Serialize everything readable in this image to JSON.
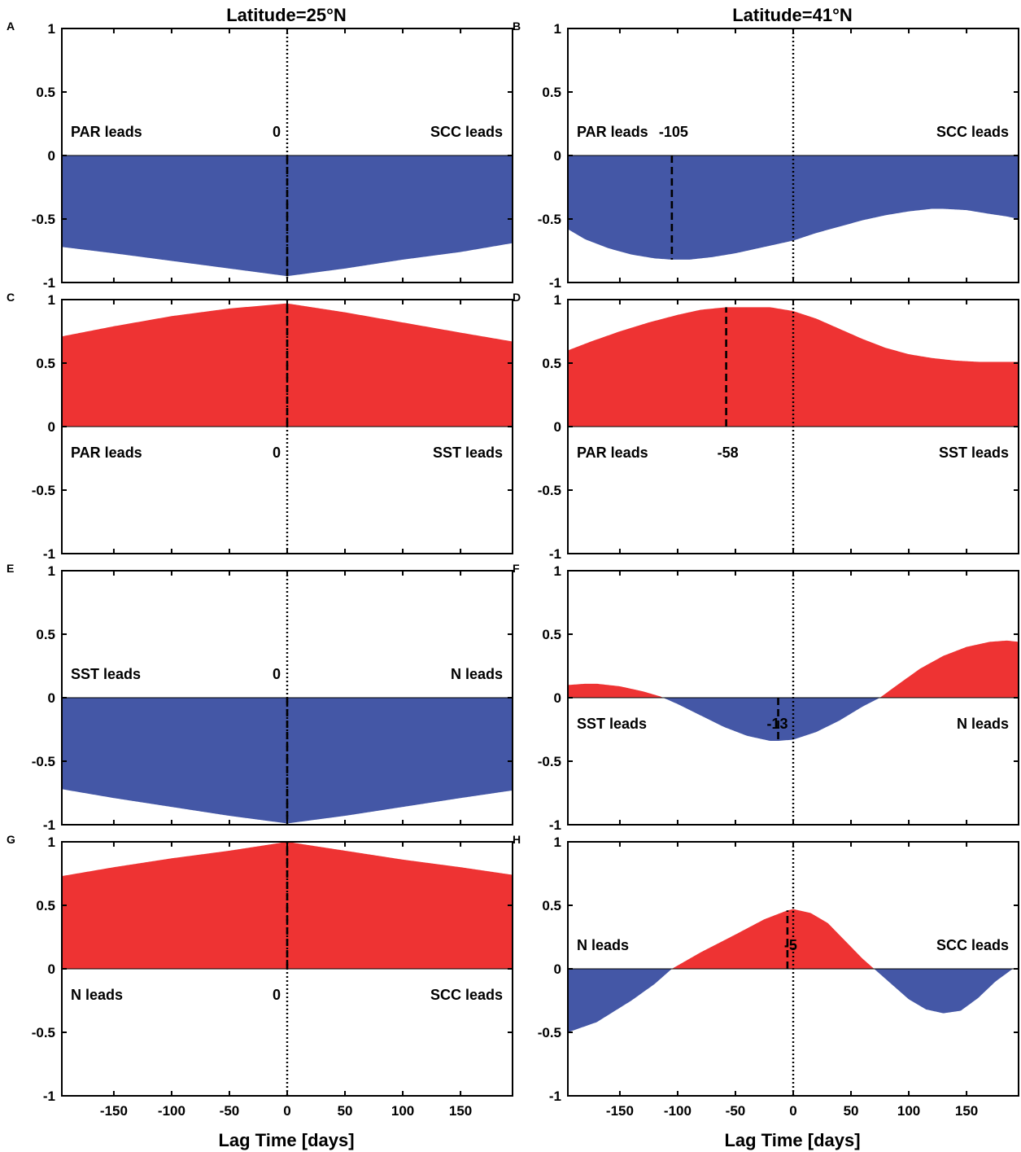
{
  "figure": {
    "column_titles": [
      "Latitude=25°N",
      "Latitude=41°N"
    ],
    "xlabel": "Lag Time [days]",
    "xlim": [
      -195,
      195
    ],
    "ylim": [
      -1,
      1
    ],
    "xticks": [
      -150,
      -100,
      -50,
      0,
      50,
      100,
      150
    ],
    "xtick_labels": [
      "-150",
      "-100",
      "-50",
      "0",
      "50",
      "100",
      "150"
    ],
    "yticks": [
      1,
      0.5,
      0,
      -0.5,
      -1
    ],
    "ytick_labels": [
      "1",
      "0.5",
      "0",
      "-0.5",
      "-1"
    ],
    "colors": {
      "positive": "#ee3333",
      "negative": "#4457a6",
      "axis": "#000000"
    }
  },
  "chart_data": [
    {
      "panel": "A",
      "type": "area",
      "column": 0,
      "row": 0,
      "title": "Latitude=25°N",
      "xlabel": "",
      "ylabel": "",
      "x": [
        -195,
        -150,
        -100,
        -50,
        0,
        50,
        100,
        150,
        195
      ],
      "y": [
        -0.72,
        -0.77,
        -0.83,
        -0.89,
        -0.95,
        -0.89,
        -0.82,
        -0.76,
        -0.69
      ],
      "peak_lag": 0,
      "peak_label": "0",
      "left_label": "PAR leads",
      "right_label": "SCC leads",
      "label_side": "above"
    },
    {
      "panel": "B",
      "type": "area",
      "column": 1,
      "row": 0,
      "title": "Latitude=41°N",
      "xlabel": "",
      "ylabel": "",
      "x": [
        -195,
        -180,
        -160,
        -140,
        -120,
        -105,
        -90,
        -70,
        -50,
        -30,
        -10,
        0,
        20,
        40,
        60,
        80,
        100,
        120,
        130,
        150,
        170,
        185,
        195
      ],
      "y": [
        -0.58,
        -0.66,
        -0.73,
        -0.78,
        -0.81,
        -0.82,
        -0.82,
        -0.8,
        -0.77,
        -0.73,
        -0.69,
        -0.67,
        -0.61,
        -0.56,
        -0.51,
        -0.47,
        -0.44,
        -0.42,
        -0.42,
        -0.43,
        -0.46,
        -0.48,
        -0.5
      ],
      "peak_lag": -105,
      "peak_label": "-105",
      "left_label": "PAR leads",
      "right_label": "SCC leads",
      "label_side": "above"
    },
    {
      "panel": "C",
      "type": "area",
      "column": 0,
      "row": 1,
      "title": "",
      "xlabel": "",
      "ylabel": "",
      "x": [
        -195,
        -150,
        -100,
        -50,
        0,
        50,
        100,
        150,
        195
      ],
      "y": [
        0.71,
        0.79,
        0.87,
        0.93,
        0.97,
        0.9,
        0.82,
        0.74,
        0.67
      ],
      "peak_lag": 0,
      "peak_label": "0",
      "left_label": "PAR leads",
      "right_label": "SST leads",
      "label_side": "below"
    },
    {
      "panel": "D",
      "type": "area",
      "column": 1,
      "row": 1,
      "title": "",
      "xlabel": "",
      "ylabel": "",
      "x": [
        -195,
        -175,
        -150,
        -125,
        -100,
        -80,
        -58,
        -40,
        -20,
        0,
        20,
        40,
        60,
        80,
        100,
        120,
        140,
        160,
        180,
        195
      ],
      "y": [
        0.6,
        0.67,
        0.75,
        0.82,
        0.88,
        0.92,
        0.94,
        0.94,
        0.94,
        0.91,
        0.85,
        0.77,
        0.69,
        0.62,
        0.57,
        0.54,
        0.52,
        0.51,
        0.51,
        0.51
      ],
      "peak_lag": -58,
      "peak_label": "-58",
      "left_label": "PAR leads",
      "right_label": "SST leads",
      "label_side": "below"
    },
    {
      "panel": "E",
      "type": "area",
      "column": 0,
      "row": 2,
      "title": "",
      "xlabel": "",
      "ylabel": "",
      "x": [
        -195,
        -150,
        -100,
        -50,
        0,
        50,
        100,
        150,
        195
      ],
      "y": [
        -0.72,
        -0.79,
        -0.86,
        -0.93,
        -0.99,
        -0.93,
        -0.86,
        -0.79,
        -0.73
      ],
      "peak_lag": 0,
      "peak_label": "0",
      "left_label": "SST leads",
      "right_label": "N leads",
      "label_side": "above"
    },
    {
      "panel": "F",
      "type": "area",
      "column": 1,
      "row": 2,
      "title": "",
      "xlabel": "",
      "ylabel": "",
      "x": [
        -195,
        -180,
        -170,
        -150,
        -130,
        -115,
        -100,
        -80,
        -60,
        -40,
        -20,
        -13,
        0,
        20,
        40,
        60,
        75,
        90,
        110,
        130,
        150,
        170,
        185,
        195
      ],
      "y": [
        0.1,
        0.11,
        0.11,
        0.09,
        0.05,
        0.01,
        -0.05,
        -0.14,
        -0.23,
        -0.3,
        -0.34,
        -0.34,
        -0.33,
        -0.27,
        -0.18,
        -0.07,
        0.0,
        0.1,
        0.23,
        0.33,
        0.4,
        0.44,
        0.45,
        0.44
      ],
      "peak_lag": -13,
      "peak_label": "-13",
      "left_label": "SST leads",
      "right_label": "N leads",
      "label_side": "below"
    },
    {
      "panel": "G",
      "type": "area",
      "column": 0,
      "row": 3,
      "title": "",
      "xlabel": "Lag Time [days]",
      "ylabel": "",
      "x": [
        -195,
        -150,
        -100,
        -50,
        0,
        50,
        100,
        150,
        195
      ],
      "y": [
        0.73,
        0.8,
        0.87,
        0.93,
        1.0,
        0.93,
        0.86,
        0.8,
        0.74
      ],
      "peak_lag": 0,
      "peak_label": "0",
      "left_label": "N leads",
      "right_label": "SCC leads",
      "label_side": "below"
    },
    {
      "panel": "H",
      "type": "area",
      "column": 1,
      "row": 3,
      "title": "",
      "xlabel": "Lag Time [days]",
      "ylabel": "",
      "x": [
        -195,
        -170,
        -140,
        -120,
        -105,
        -80,
        -50,
        -25,
        -5,
        0,
        15,
        30,
        45,
        60,
        70,
        85,
        100,
        115,
        130,
        145,
        160,
        175,
        190,
        195
      ],
      "y": [
        -0.5,
        -0.42,
        -0.25,
        -0.12,
        0.0,
        0.13,
        0.27,
        0.39,
        0.46,
        0.47,
        0.44,
        0.36,
        0.22,
        0.08,
        0.0,
        -0.12,
        -0.24,
        -0.32,
        -0.35,
        -0.33,
        -0.23,
        -0.1,
        0.0,
        0.0
      ],
      "peak_lag": -5,
      "peak_label": "-5",
      "left_label": "N leads",
      "right_label": "SCC leads",
      "label_side": "above"
    }
  ]
}
